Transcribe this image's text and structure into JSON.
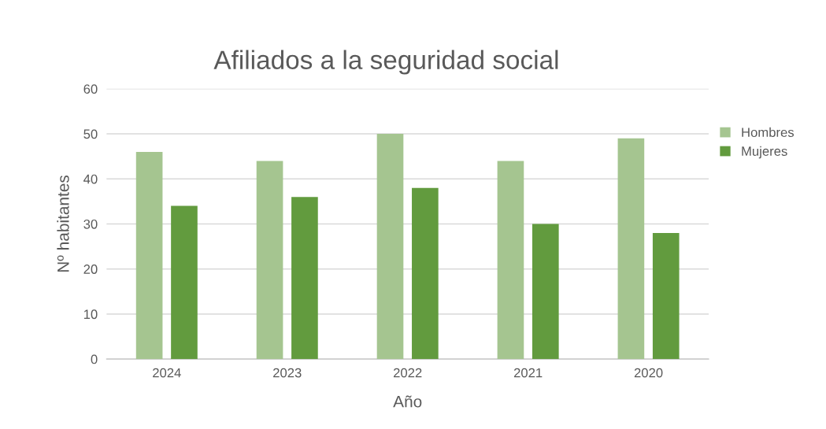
{
  "chart_data": {
    "type": "bar",
    "title": "Afiliados a la seguridad social",
    "xlabel": "Año",
    "ylabel": "Nº habitantes",
    "categories": [
      "2024",
      "2023",
      "2022",
      "2021",
      "2020"
    ],
    "series": [
      {
        "name": "Hombres",
        "color": "#a5c590",
        "values": [
          46,
          44,
          50,
          44,
          49
        ]
      },
      {
        "name": "Mujeres",
        "color": "#629b3e",
        "values": [
          34,
          36,
          38,
          30,
          28
        ]
      }
    ],
    "ylim": [
      0,
      60
    ],
    "yticks": [
      0,
      10,
      20,
      30,
      40,
      50,
      60
    ],
    "grid": "y",
    "legend": "right"
  }
}
